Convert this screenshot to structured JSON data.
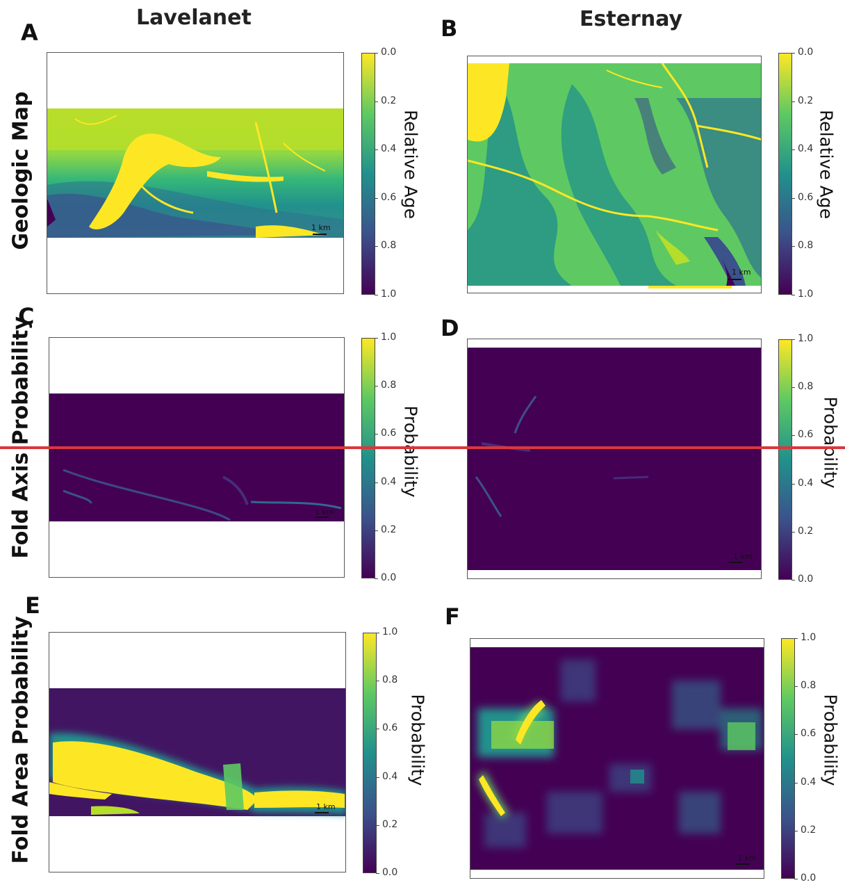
{
  "columns": {
    "left": "Lavelanet",
    "right": "Esternay"
  },
  "rows": {
    "row1": "Geologic Map",
    "row2": "Fold Axis Probability",
    "row3": "Fold Area Probability"
  },
  "panels": {
    "A": {
      "letter": "A",
      "colorbar_label": "Relative Age",
      "ticks": [
        "0.0",
        "0.2",
        "0.4",
        "0.6",
        "0.8",
        "1.0"
      ],
      "scale": "1 km"
    },
    "B": {
      "letter": "B",
      "colorbar_label": "Relative Age",
      "ticks": [
        "0.0",
        "0.2",
        "0.4",
        "0.6",
        "0.8",
        "1.0"
      ],
      "scale": "1 km"
    },
    "C": {
      "letter": "C",
      "colorbar_label": "Probability",
      "ticks": [
        "1.0",
        "0.8",
        "0.6",
        "0.4",
        "0.2",
        "0.0"
      ],
      "scale": "1 km"
    },
    "D": {
      "letter": "D",
      "colorbar_label": "Probability",
      "ticks": [
        "1.0",
        "0.8",
        "0.6",
        "0.4",
        "0.2",
        "0.0"
      ],
      "scale": "1 km"
    },
    "E": {
      "letter": "E",
      "colorbar_label": "Probability",
      "ticks": [
        "1.0",
        "0.8",
        "0.6",
        "0.4",
        "0.2",
        "0.0"
      ],
      "scale": "1 km"
    },
    "F": {
      "letter": "F",
      "colorbar_label": "Probability",
      "ticks": [
        "1.0",
        "0.8",
        "0.6",
        "0.4",
        "0.2",
        "0.0"
      ],
      "scale": "1 km"
    }
  },
  "chart_data": [
    {
      "panel": "A",
      "type": "heatmap",
      "title": "Lavelanet",
      "row": "Geologic Map",
      "colorbar": {
        "label": "Relative Age",
        "range": [
          0.0,
          1.0
        ],
        "colormap": "viridis",
        "reversed": true
      },
      "scale_bar": "1 km"
    },
    {
      "panel": "B",
      "type": "heatmap",
      "title": "Esternay",
      "row": "Geologic Map",
      "colorbar": {
        "label": "Relative Age",
        "range": [
          0.0,
          1.0
        ],
        "colormap": "viridis",
        "reversed": true
      },
      "scale_bar": "1 km"
    },
    {
      "panel": "C",
      "type": "heatmap",
      "row": "Fold Axis Probability",
      "colorbar": {
        "label": "Probability",
        "range": [
          0.0,
          1.0
        ],
        "colormap": "viridis"
      },
      "scale_bar": "1 km"
    },
    {
      "panel": "D",
      "type": "heatmap",
      "row": "Fold Axis Probability",
      "colorbar": {
        "label": "Probability",
        "range": [
          0.0,
          1.0
        ],
        "colormap": "viridis"
      },
      "scale_bar": "1 km"
    },
    {
      "panel": "E",
      "type": "heatmap",
      "row": "Fold Area Probability",
      "colorbar": {
        "label": "Probability",
        "range": [
          0.0,
          1.0
        ],
        "colormap": "viridis"
      },
      "scale_bar": "1 km"
    },
    {
      "panel": "F",
      "type": "heatmap",
      "row": "Fold Area Probability",
      "colorbar": {
        "label": "Probability",
        "range": [
          0.0,
          1.0
        ],
        "colormap": "viridis"
      },
      "scale_bar": "1 km"
    }
  ],
  "colors": {
    "viridis_dark": "#440154",
    "viridis_blue": "#3b528b",
    "viridis_teal": "#21918c",
    "viridis_green": "#5ec962",
    "viridis_yellow": "#fde725",
    "divider": "#d9373c"
  }
}
